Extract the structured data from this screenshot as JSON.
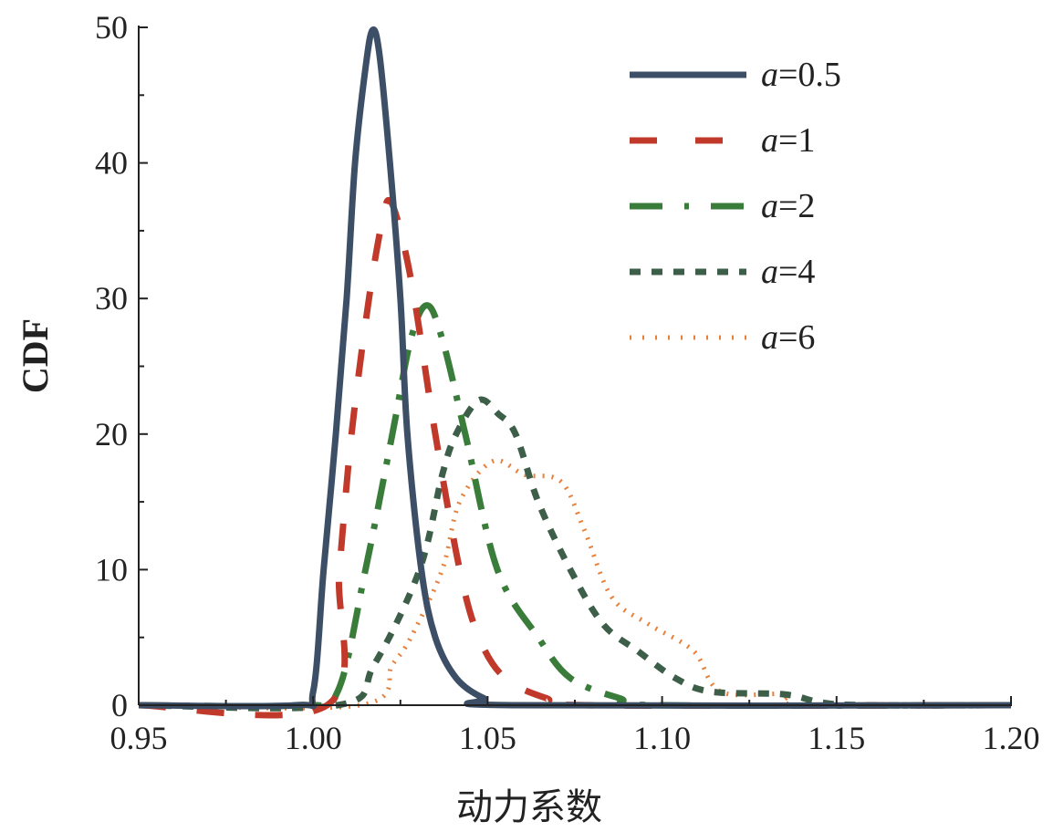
{
  "chart_data": {
    "type": "line",
    "title": "",
    "xlabel": "动力系数",
    "ylabel": "CDF",
    "xlim": [
      0.95,
      1.2
    ],
    "ylim": [
      0,
      50
    ],
    "xticks": [
      "0.95",
      "1.00",
      "1.05",
      "1.10",
      "1.15",
      "1.20"
    ],
    "yticks": [
      "0",
      "10",
      "20",
      "30",
      "40",
      "50"
    ],
    "grid": false,
    "legend_position": "top-right",
    "series": [
      {
        "name": "a=0.5",
        "color": "#3d4f66",
        "dash": "solid",
        "x": [
          0.95,
          0.995,
          1.0,
          1.003,
          1.0065,
          1.0096,
          1.012,
          1.015,
          1.017,
          1.019,
          1.022,
          1.025,
          1.027,
          1.031,
          1.035,
          1.041,
          1.049,
          1.057,
          1.2
        ],
        "y": [
          0,
          0,
          1,
          10,
          20,
          30,
          40,
          47,
          49.8,
          48,
          40,
          30,
          20,
          10,
          5,
          2,
          0.5,
          0,
          0
        ]
      },
      {
        "name": "a=1",
        "color": "#c0392b",
        "dash": "dash",
        "x": [
          0.95,
          1.004,
          1.0075,
          1.011,
          1.016,
          1.02,
          1.022,
          1.025,
          1.029,
          1.035,
          1.042,
          1.0475,
          1.055,
          1.067,
          1.078,
          1.2
        ],
        "y": [
          0,
          0,
          10,
          20,
          30,
          36,
          37.2,
          35,
          30,
          20,
          10,
          5,
          2,
          0.5,
          0,
          0
        ]
      },
      {
        "name": "a=2",
        "color": "#3a7d3a",
        "dash": "dashdot",
        "x": [
          0.95,
          0.9966,
          1.007,
          1.015,
          1.0227,
          1.028,
          1.0326,
          1.037,
          1.0436,
          1.0528,
          1.0645,
          1.0737,
          1.088,
          1.0985,
          1.2
        ],
        "y": [
          0,
          0,
          1,
          10,
          20,
          27,
          29.5,
          27,
          20,
          10,
          5,
          2,
          0.5,
          0,
          0
        ]
      },
      {
        "name": "a=4",
        "color": "#3d5e48",
        "dash": "short-dash",
        "x": [
          0.95,
          1.007,
          1.0175,
          1.0305,
          1.037,
          1.041,
          1.0475,
          1.053,
          1.058,
          1.0645,
          1.0737,
          1.083,
          1.093,
          1.1038,
          1.114,
          1.135,
          1.1456,
          1.1587,
          1.2
        ],
        "y": [
          0,
          0,
          3,
          10,
          17,
          20,
          22.5,
          21.5,
          20,
          15,
          10,
          6,
          4,
          2,
          1,
          0.8,
          0.2,
          0,
          0
        ]
      },
      {
        "name": "a=6",
        "color": "#e8803a",
        "dash": "dot",
        "x": [
          0.95,
          1.0135,
          1.0227,
          1.028,
          1.037,
          1.042,
          1.0515,
          1.0606,
          1.071,
          1.0776,
          1.0855,
          1.096,
          1.109,
          1.1168,
          1.135,
          1.14,
          1.2
        ],
        "y": [
          0,
          0,
          3,
          5,
          10,
          15,
          18,
          17,
          16.5,
          13,
          8,
          6,
          4,
          1,
          0.8,
          0,
          0
        ]
      }
    ]
  }
}
